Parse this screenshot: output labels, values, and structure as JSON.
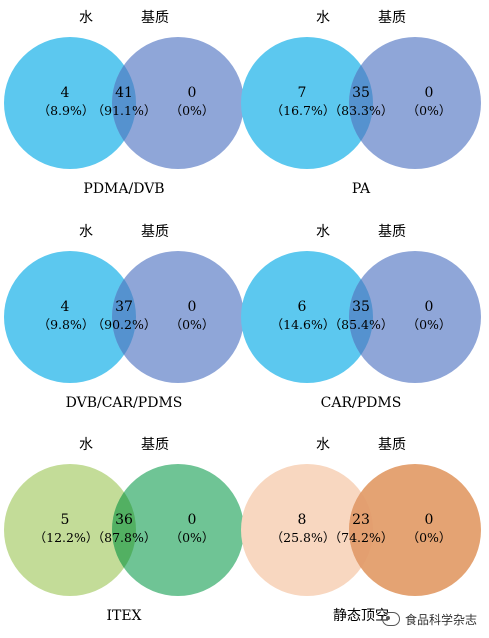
{
  "panels": [
    {
      "title": "PDMA/DVB",
      "sets": [
        "水",
        "基质"
      ],
      "left": {
        "count": "4",
        "pct": "（8.9%）"
      },
      "overlap": {
        "count": "41",
        "pct": "（91.1%）"
      },
      "right": {
        "count": "0",
        "pct": "（0%）"
      },
      "colors": {
        "left": "#5cc8ef",
        "right": "#8fa6d8",
        "overlap": "#5592cf"
      }
    },
    {
      "title": "PA",
      "sets": [
        "水",
        "基质"
      ],
      "left": {
        "count": "7",
        "pct": "（16.7%）"
      },
      "overlap": {
        "count": "35",
        "pct": "（83.3%）"
      },
      "right": {
        "count": "0",
        "pct": "（0%）"
      },
      "colors": {
        "left": "#5cc8ef",
        "right": "#8fa6d8",
        "overlap": "#5592cf"
      }
    },
    {
      "title": "DVB/CAR/PDMS",
      "sets": [
        "水",
        "基质"
      ],
      "left": {
        "count": "4",
        "pct": "（9.8%）"
      },
      "overlap": {
        "count": "37",
        "pct": "（90.2%）"
      },
      "right": {
        "count": "0",
        "pct": "（0%）"
      },
      "colors": {
        "left": "#5cc8ef",
        "right": "#8fa6d8",
        "overlap": "#5592cf"
      }
    },
    {
      "title": "CAR/PDMS",
      "sets": [
        "水",
        "基质"
      ],
      "left": {
        "count": "6",
        "pct": "（14.6%）"
      },
      "overlap": {
        "count": "35",
        "pct": "（85.4%）"
      },
      "right": {
        "count": "0",
        "pct": "（0%）"
      },
      "colors": {
        "left": "#5cc8ef",
        "right": "#8fa6d8",
        "overlap": "#5592cf"
      }
    },
    {
      "title": "ITEX",
      "sets": [
        "水",
        "基质"
      ],
      "left": {
        "count": "5",
        "pct": "（12.2%）"
      },
      "overlap": {
        "count": "36",
        "pct": "（87.8%）"
      },
      "right": {
        "count": "0",
        "pct": "（0%）"
      },
      "colors": {
        "left": "#c3dc98",
        "right": "#6fc495",
        "overlap": "#52b062"
      }
    },
    {
      "title": "静态顶空",
      "sets": [
        "水",
        "基质"
      ],
      "left": {
        "count": "8",
        "pct": "（25.8%）"
      },
      "overlap": {
        "count": "23",
        "pct": "（74.2%）"
      },
      "right": {
        "count": "0",
        "pct": "（0%）"
      },
      "colors": {
        "left": "#f8d7c0",
        "right": "#e4a373",
        "overlap": "#e39f70"
      }
    }
  ],
  "watermark": {
    "text": "食品科学杂志",
    "icon": "wechat-icon"
  }
}
